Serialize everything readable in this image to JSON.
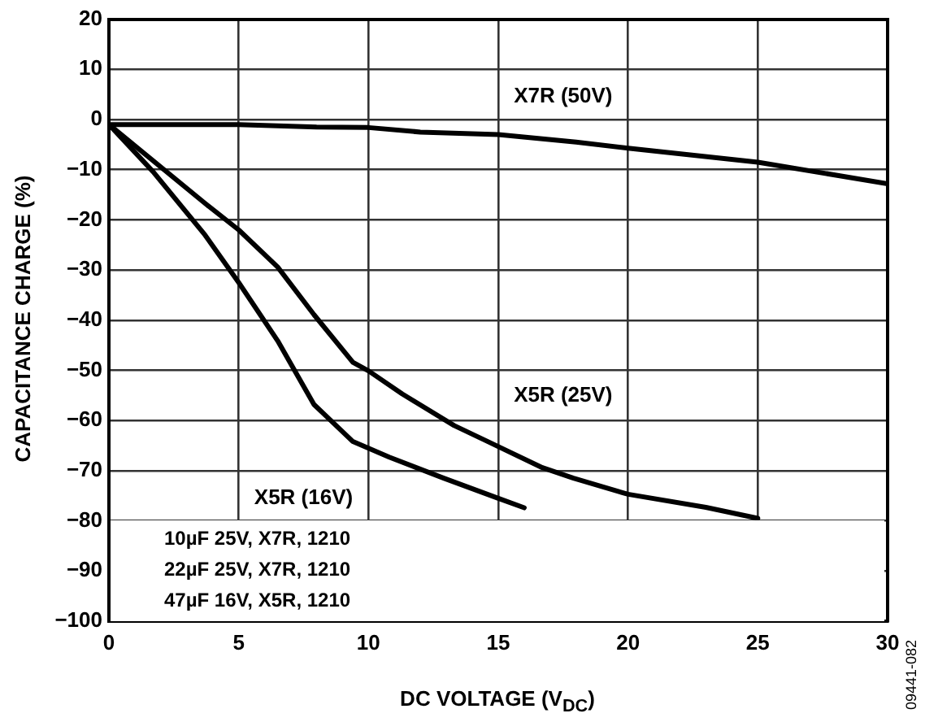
{
  "chart_data": {
    "type": "line",
    "xlabel": "DC VOLTAGE (V$_{DC}$)",
    "ylabel": "CAPACITANCE CHARGE (%)",
    "series": [
      {
        "name": "X7R (50V)",
        "color": "#000000",
        "x": [
          0,
          5,
          8,
          10,
          12,
          15,
          18,
          20,
          25,
          30
        ],
        "values": [
          -1,
          -1,
          -1.5,
          -1.6,
          -2.5,
          -3,
          -4.5,
          -5.7,
          -8.5,
          -12.8
        ]
      },
      {
        "name": "X5R (25V)",
        "color": "#000000",
        "x": [
          0,
          3.7,
          5,
          6.5,
          7.9,
          9.4,
          10,
          11.3,
          13.3,
          14.6,
          16.7,
          17.9,
          20,
          23,
          25
        ],
        "values": [
          -1,
          -16.7,
          -22,
          -29.4,
          -38.9,
          -48.4,
          -50.1,
          -54.7,
          -61,
          -64.2,
          -69.4,
          -71.5,
          -74.7,
          -77.3,
          -79.5
        ]
      },
      {
        "name": "X5R (16V)",
        "color": "#000000",
        "x": [
          0,
          1.7,
          3.7,
          5,
          6.5,
          7.9,
          9.4,
          10.8,
          12.9,
          15,
          16
        ],
        "values": [
          -1,
          -10.4,
          -23,
          -32.5,
          -44.1,
          -56.8,
          -64.2,
          -67.3,
          -71.5,
          -75.5,
          -77.4
        ]
      }
    ],
    "xlim": [
      0,
      30
    ],
    "xticks": [
      0,
      5,
      10,
      15,
      20,
      25,
      30
    ],
    "ylim": [
      -100,
      20
    ],
    "yticks": [
      -100,
      -90,
      -80,
      -70,
      -60,
      -50,
      -40,
      -30,
      -20,
      -10,
      0,
      10,
      20
    ],
    "grid": true,
    "legend": false,
    "marker": "none",
    "line_style": "solid",
    "annotations": [
      "10µF 25V, X7R, 1210",
      "22µF 25V, X7R, 1210",
      "47µF 16V, X5R, 1210",
      "09441-082"
    ]
  }
}
